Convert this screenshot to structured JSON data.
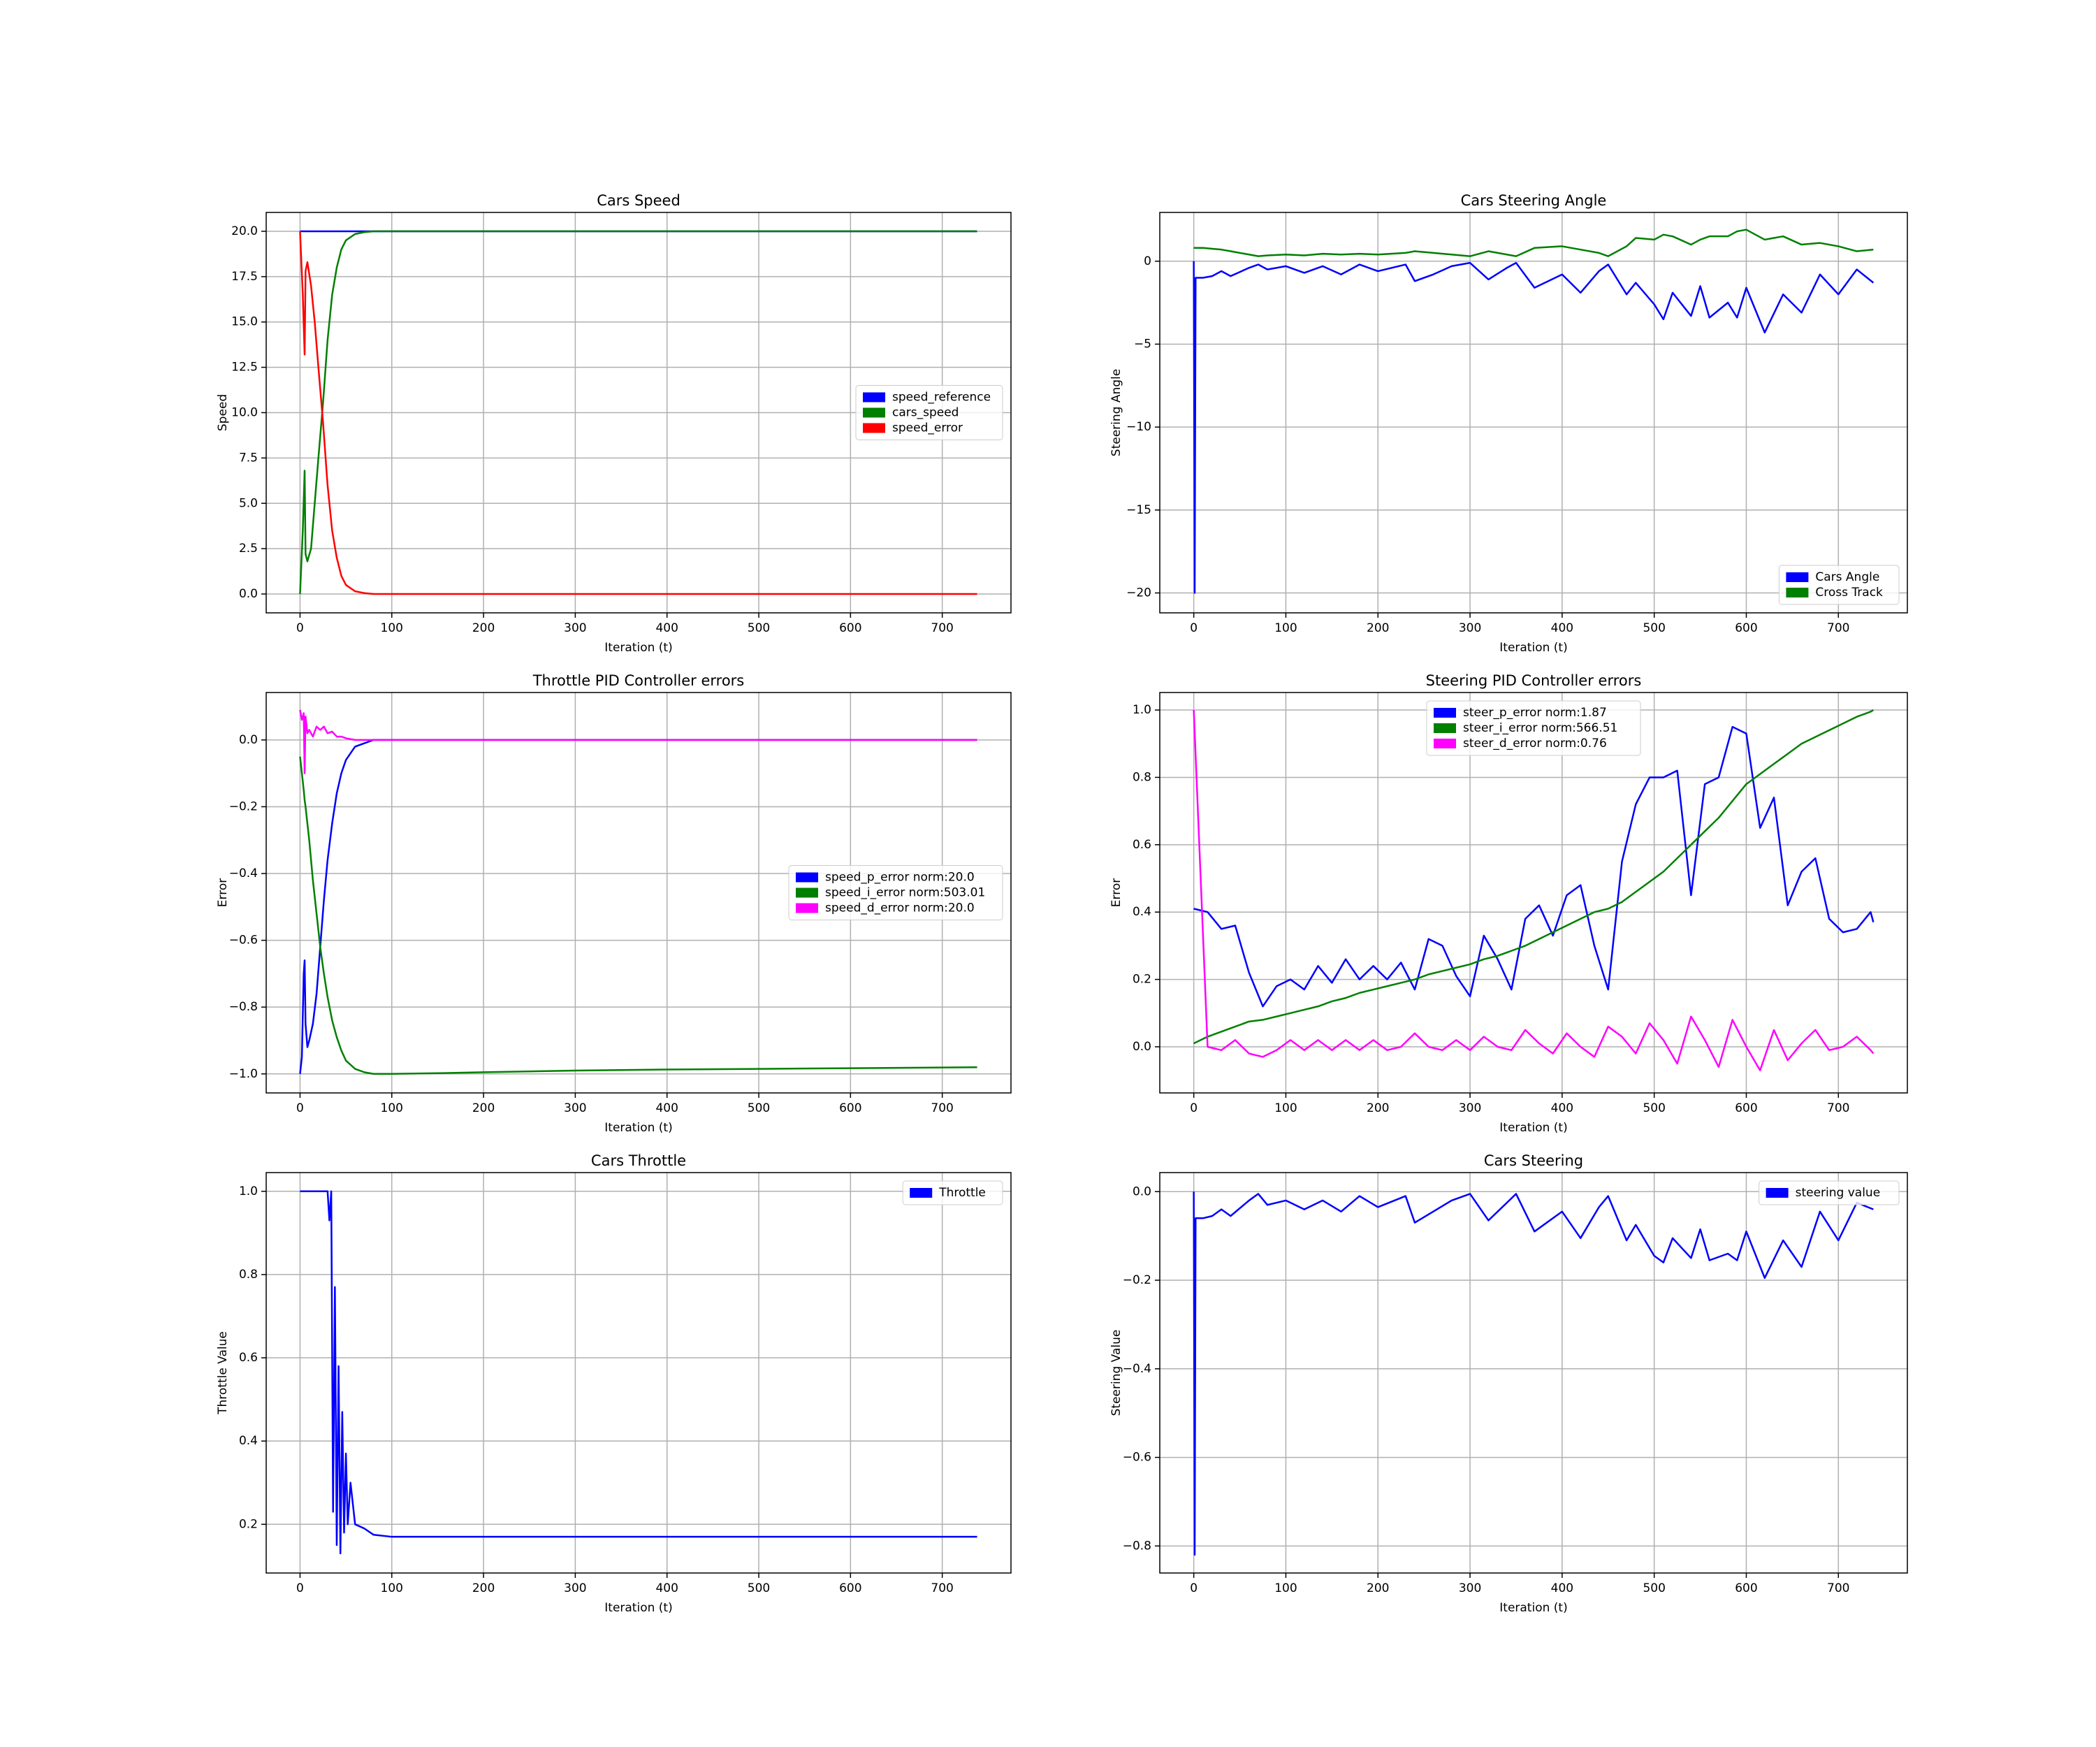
{
  "chart_data": [
    {
      "type": "line",
      "title": "Cars Speed",
      "xlabel": "Iteration (t)",
      "ylabel": "Speed",
      "legend": "center right",
      "grid": true,
      "xlim": [
        -36.9,
        774.9
      ],
      "xticks": [
        0,
        100,
        200,
        300,
        400,
        500,
        600,
        700
      ],
      "ylim": [
        -1.04,
        21.04
      ],
      "yticks": [
        {
          "value": 0,
          "label": "0.0"
        },
        {
          "value": 2.5,
          "label": "2.5"
        },
        {
          "value": 5,
          "label": "5.0"
        },
        {
          "value": 7.5,
          "label": "7.5"
        },
        {
          "value": 10,
          "label": "10.0"
        },
        {
          "value": 12.5,
          "label": "12.5"
        },
        {
          "value": 15,
          "label": "15.0"
        },
        {
          "value": 17.5,
          "label": "17.5"
        },
        {
          "value": 20,
          "label": "20.0"
        }
      ],
      "x": [
        0,
        3,
        5,
        6,
        8,
        12,
        16,
        20,
        25,
        30,
        35,
        40,
        45,
        50,
        60,
        70,
        80,
        90,
        100,
        150,
        200,
        300,
        400,
        500,
        600,
        700,
        738
      ],
      "series": [
        {
          "name": "speed_reference",
          "color": "#0000ff",
          "values": [
            20,
            20,
            20,
            20,
            20,
            20,
            20,
            20,
            20,
            20,
            20,
            20,
            20,
            20,
            20,
            20,
            20,
            20,
            20,
            20,
            20,
            20,
            20,
            20,
            20,
            20,
            20
          ]
        },
        {
          "name": "cars_speed",
          "color": "#008000",
          "values": [
            0,
            3.5,
            6.8,
            2.2,
            1.8,
            2.5,
            5,
            7.5,
            10.5,
            14,
            16.5,
            18,
            19,
            19.5,
            19.85,
            19.95,
            20,
            20,
            20,
            20,
            20,
            20,
            20,
            20,
            20,
            20,
            20
          ]
        },
        {
          "name": "speed_error",
          "color": "#ff0000",
          "values": [
            20,
            16.5,
            13.2,
            17.8,
            18.3,
            17,
            15,
            12.5,
            9.5,
            6,
            3.5,
            2,
            1,
            0.5,
            0.15,
            0.05,
            0,
            0,
            0,
            0,
            0,
            0,
            0,
            0,
            0,
            0,
            0
          ]
        }
      ]
    },
    {
      "type": "line",
      "title": "Cars Steering Angle",
      "xlabel": "Iteration (t)",
      "ylabel": "Steering Angle",
      "legend": "lower right",
      "grid": true,
      "xlim": [
        -36.9,
        774.9
      ],
      "xticks": [
        0,
        100,
        200,
        300,
        400,
        500,
        600,
        700
      ],
      "ylim": [
        -21.2,
        2.94
      ],
      "yticks": [
        {
          "value": -20,
          "label": "−20"
        },
        {
          "value": -15,
          "label": "−15"
        },
        {
          "value": -10,
          "label": "−10"
        },
        {
          "value": -5,
          "label": "−5"
        },
        0
      ],
      "x": [
        0,
        1,
        2,
        10,
        20,
        30,
        40,
        60,
        70,
        80,
        100,
        120,
        140,
        160,
        180,
        200,
        230,
        240,
        260,
        280,
        300,
        320,
        340,
        350,
        370,
        400,
        420,
        440,
        450,
        470,
        480,
        500,
        510,
        520,
        540,
        550,
        560,
        580,
        590,
        600,
        620,
        640,
        660,
        680,
        700,
        720,
        738
      ],
      "series": [
        {
          "name": "Cars Angle",
          "color": "#0000ff",
          "values": [
            0,
            -20,
            -1,
            -1,
            -0.9,
            -0.6,
            -0.9,
            -0.4,
            -0.2,
            -0.5,
            -0.3,
            -0.7,
            -0.3,
            -0.8,
            -0.2,
            -0.6,
            -0.2,
            -1.2,
            -0.8,
            -0.3,
            -0.1,
            -1.1,
            -0.4,
            -0.1,
            -1.6,
            -0.8,
            -1.9,
            -0.6,
            -0.2,
            -2.0,
            -1.3,
            -2.6,
            -3.5,
            -1.9,
            -3.3,
            -1.5,
            -3.4,
            -2.5,
            -3.4,
            -1.6,
            -4.3,
            -2.0,
            -3.1,
            -0.8,
            -2.0,
            -0.5,
            -1.3
          ]
        },
        {
          "name": "Cross Track",
          "color": "#008000",
          "values": [
            0.8,
            0.8,
            0.8,
            0.8,
            0.75,
            0.7,
            0.6,
            0.4,
            0.3,
            0.35,
            0.4,
            0.35,
            0.45,
            0.4,
            0.45,
            0.4,
            0.5,
            0.6,
            0.5,
            0.4,
            0.3,
            0.6,
            0.4,
            0.3,
            0.8,
            0.9,
            0.7,
            0.5,
            0.3,
            0.9,
            1.4,
            1.3,
            1.6,
            1.5,
            1.0,
            1.3,
            1.5,
            1.5,
            1.8,
            1.9,
            1.3,
            1.5,
            1.0,
            1.1,
            0.9,
            0.6,
            0.7
          ]
        }
      ]
    },
    {
      "type": "line",
      "title": "Throttle PID Controller errors",
      "xlabel": "Iteration (t)",
      "ylabel": "Error",
      "legend": "center right",
      "grid": true,
      "xlim": [
        -36.9,
        774.9
      ],
      "xticks": [
        0,
        100,
        200,
        300,
        400,
        500,
        600,
        700
      ],
      "ylim": [
        -1.057,
        0.142
      ],
      "yticks": [
        {
          "value": -1,
          "label": "−1.0"
        },
        {
          "value": -0.8,
          "label": "−0.8"
        },
        {
          "value": -0.6,
          "label": "−0.6"
        },
        {
          "value": -0.4,
          "label": "−0.4"
        },
        {
          "value": -0.2,
          "label": "−0.2"
        },
        {
          "value": 0,
          "label": "0.0"
        }
      ],
      "x": [
        0,
        2,
        4,
        5,
        6,
        8,
        10,
        14,
        18,
        22,
        26,
        30,
        35,
        40,
        45,
        50,
        60,
        70,
        80,
        90,
        100,
        150,
        200,
        300,
        400,
        500,
        600,
        700,
        738
      ],
      "series": [
        {
          "name": "speed_p_error norm:20.0",
          "color": "#0000ff",
          "values": [
            -1,
            -0.95,
            -0.7,
            -0.66,
            -0.85,
            -0.92,
            -0.9,
            -0.85,
            -0.76,
            -0.62,
            -0.48,
            -0.36,
            -0.25,
            -0.16,
            -0.1,
            -0.06,
            -0.02,
            -0.01,
            0,
            0,
            0,
            0,
            0,
            0,
            0,
            0,
            0,
            0,
            0
          ]
        },
        {
          "name": "speed_i_error norm:503.01",
          "color": "#008000",
          "values": [
            -0.05,
            -0.1,
            -0.15,
            -0.18,
            -0.2,
            -0.25,
            -0.3,
            -0.42,
            -0.52,
            -0.62,
            -0.7,
            -0.77,
            -0.84,
            -0.89,
            -0.93,
            -0.96,
            -0.985,
            -0.995,
            -1,
            -1,
            -1,
            -0.998,
            -0.995,
            -0.99,
            -0.987,
            -0.985,
            -0.983,
            -0.981,
            -0.98
          ]
        },
        {
          "name": "speed_d_error norm:20.0",
          "color": "#ff00ff",
          "values": [
            0.09,
            0.06,
            0.08,
            -0.1,
            0.07,
            0.02,
            0.03,
            0.01,
            0.04,
            0.03,
            0.04,
            0.02,
            0.025,
            0.01,
            0.01,
            0.005,
            0,
            0,
            0,
            0,
            0,
            0,
            0,
            0,
            0,
            0,
            0,
            0,
            0
          ]
        }
      ]
    },
    {
      "type": "line",
      "title": "Steering PID Controller errors",
      "xlabel": "Iteration (t)",
      "ylabel": "Error",
      "legend": "upper center",
      "grid": true,
      "xlim": [
        -36.9,
        774.9
      ],
      "xticks": [
        0,
        100,
        200,
        300,
        400,
        500,
        600,
        700
      ],
      "ylim": [
        -0.137,
        1.052
      ],
      "yticks": [
        {
          "value": 0,
          "label": "0.0"
        },
        {
          "value": 0.2,
          "label": "0.2"
        },
        {
          "value": 0.4,
          "label": "0.4"
        },
        {
          "value": 0.6,
          "label": "0.6"
        },
        {
          "value": 0.8,
          "label": "0.8"
        },
        {
          "value": 1,
          "label": "1.0"
        }
      ],
      "x": [
        0,
        15,
        30,
        45,
        60,
        75,
        90,
        105,
        120,
        135,
        150,
        165,
        180,
        195,
        210,
        225,
        240,
        255,
        270,
        285,
        300,
        315,
        330,
        345,
        360,
        375,
        390,
        405,
        420,
        435,
        450,
        465,
        480,
        495,
        510,
        525,
        540,
        555,
        570,
        585,
        600,
        615,
        630,
        645,
        660,
        675,
        690,
        705,
        720,
        735,
        738
      ],
      "series": [
        {
          "name": "steer_p_error norm:1.87",
          "color": "#0000ff",
          "values": [
            0.41,
            0.4,
            0.35,
            0.36,
            0.22,
            0.12,
            0.18,
            0.2,
            0.17,
            0.24,
            0.19,
            0.26,
            0.2,
            0.24,
            0.2,
            0.25,
            0.17,
            0.32,
            0.3,
            0.21,
            0.15,
            0.33,
            0.26,
            0.17,
            0.38,
            0.42,
            0.33,
            0.45,
            0.48,
            0.3,
            0.17,
            0.55,
            0.72,
            0.8,
            0.8,
            0.82,
            0.45,
            0.78,
            0.8,
            0.95,
            0.93,
            0.65,
            0.74,
            0.42,
            0.52,
            0.56,
            0.38,
            0.34,
            0.35,
            0.4,
            0.37
          ]
        },
        {
          "name": "steer_i_error norm:566.51",
          "color": "#008000",
          "values": [
            0.01,
            0.03,
            0.045,
            0.06,
            0.075,
            0.08,
            0.09,
            0.1,
            0.11,
            0.12,
            0.135,
            0.145,
            0.16,
            0.17,
            0.18,
            0.19,
            0.2,
            0.215,
            0.225,
            0.235,
            0.245,
            0.26,
            0.27,
            0.285,
            0.3,
            0.32,
            0.34,
            0.36,
            0.38,
            0.4,
            0.41,
            0.43,
            0.46,
            0.49,
            0.52,
            0.56,
            0.6,
            0.64,
            0.68,
            0.73,
            0.78,
            0.81,
            0.84,
            0.87,
            0.9,
            0.92,
            0.94,
            0.96,
            0.98,
            0.995,
            1.0
          ]
        },
        {
          "name": "steer_d_error norm:0.76",
          "color": "#ff00ff",
          "values": [
            1.0,
            0.0,
            -0.01,
            0.02,
            -0.02,
            -0.03,
            -0.01,
            0.02,
            -0.01,
            0.02,
            -0.01,
            0.02,
            -0.01,
            0.02,
            -0.01,
            0.0,
            0.04,
            0.0,
            -0.01,
            0.02,
            -0.01,
            0.03,
            0.0,
            -0.01,
            0.05,
            0.01,
            -0.02,
            0.04,
            0.0,
            -0.03,
            0.06,
            0.03,
            -0.02,
            0.07,
            0.02,
            -0.05,
            0.09,
            0.02,
            -0.06,
            0.08,
            0.0,
            -0.07,
            0.05,
            -0.04,
            0.01,
            0.05,
            -0.01,
            0.0,
            0.03,
            -0.01,
            -0.02
          ]
        }
      ]
    },
    {
      "type": "line",
      "title": "Cars Throttle",
      "xlabel": "Iteration (t)",
      "ylabel": "Throttle Value",
      "legend": "upper right",
      "grid": true,
      "xlim": [
        -36.9,
        774.9
      ],
      "xticks": [
        0,
        100,
        200,
        300,
        400,
        500,
        600,
        700
      ],
      "ylim": [
        0.083,
        1.045
      ],
      "yticks": [
        {
          "value": 0.2,
          "label": "0.2"
        },
        {
          "value": 0.4,
          "label": "0.4"
        },
        {
          "value": 0.6,
          "label": "0.6"
        },
        {
          "value": 0.8,
          "label": "0.8"
        },
        {
          "value": 1,
          "label": "1.0"
        }
      ],
      "x": [
        0,
        30,
        32,
        34,
        36,
        38,
        40,
        42,
        44,
        46,
        48,
        50,
        52,
        55,
        60,
        70,
        80,
        100,
        200,
        300,
        400,
        500,
        600,
        700,
        738
      ],
      "series": [
        {
          "name": "Throttle",
          "color": "#0000ff",
          "values": [
            1,
            1,
            0.93,
            1.0,
            0.23,
            0.77,
            0.15,
            0.58,
            0.13,
            0.47,
            0.18,
            0.37,
            0.2,
            0.3,
            0.2,
            0.19,
            0.175,
            0.17,
            0.17,
            0.17,
            0.17,
            0.17,
            0.17,
            0.17,
            0.17
          ]
        }
      ]
    },
    {
      "type": "line",
      "title": "Cars Steering",
      "xlabel": "Iteration (t)",
      "ylabel": "Steering Value",
      "legend": "upper right",
      "grid": true,
      "xlim": [
        -36.9,
        774.9
      ],
      "xticks": [
        0,
        100,
        200,
        300,
        400,
        500,
        600,
        700
      ],
      "ylim": [
        -0.861,
        0.043
      ],
      "yticks": [
        {
          "value": -0.8,
          "label": "−0.8"
        },
        {
          "value": -0.6,
          "label": "−0.6"
        },
        {
          "value": -0.4,
          "label": "−0.4"
        },
        {
          "value": -0.2,
          "label": "−0.2"
        },
        {
          "value": 0,
          "label": "0.0"
        }
      ],
      "x": [
        0,
        1,
        2,
        10,
        20,
        30,
        40,
        60,
        70,
        80,
        100,
        120,
        140,
        160,
        180,
        200,
        230,
        240,
        260,
        280,
        300,
        320,
        340,
        350,
        370,
        400,
        420,
        440,
        450,
        470,
        480,
        500,
        510,
        520,
        540,
        550,
        560,
        580,
        590,
        600,
        620,
        640,
        660,
        680,
        700,
        720,
        738
      ],
      "series": [
        {
          "name": "steering value",
          "color": "#0000ff",
          "values": [
            0,
            -0.82,
            -0.06,
            -0.06,
            -0.055,
            -0.04,
            -0.055,
            -0.02,
            -0.005,
            -0.03,
            -0.02,
            -0.04,
            -0.02,
            -0.045,
            -0.01,
            -0.035,
            -0.01,
            -0.07,
            -0.045,
            -0.02,
            -0.005,
            -0.065,
            -0.025,
            -0.005,
            -0.09,
            -0.045,
            -0.105,
            -0.035,
            -0.01,
            -0.11,
            -0.075,
            -0.145,
            -0.16,
            -0.105,
            -0.15,
            -0.085,
            -0.155,
            -0.14,
            -0.155,
            -0.09,
            -0.195,
            -0.11,
            -0.17,
            -0.045,
            -0.11,
            -0.025,
            -0.04
          ]
        }
      ]
    }
  ]
}
